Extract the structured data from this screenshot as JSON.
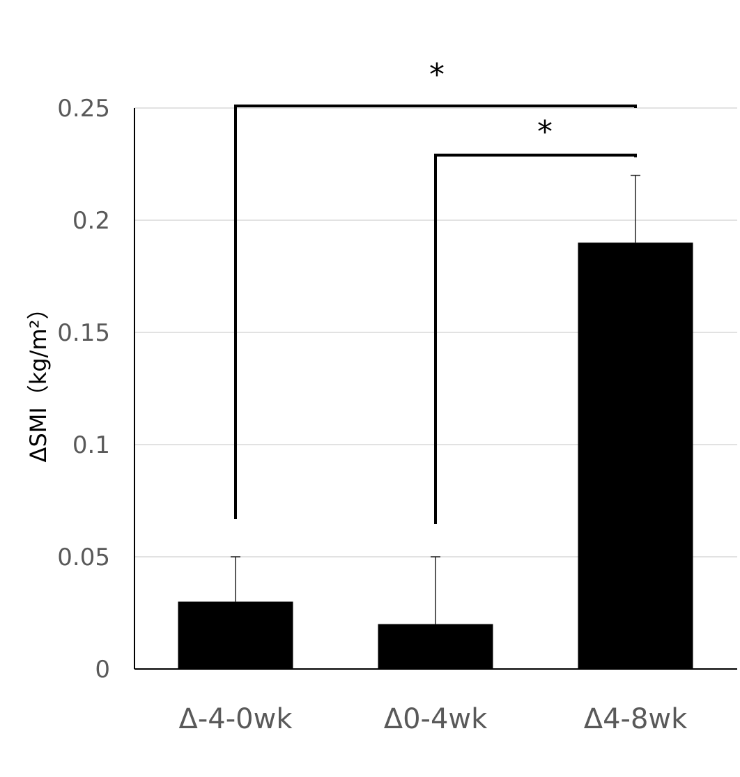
{
  "chart_data": {
    "type": "bar",
    "categories": [
      "Δ-4-0wk",
      "Δ0-4wk",
      "Δ4-8wk"
    ],
    "values": [
      0.03,
      0.02,
      0.19
    ],
    "errors": [
      0.02,
      0.03,
      0.03
    ],
    "ylabel": "ΔSMI（kg/m²）",
    "ylim": [
      0,
      0.25
    ],
    "yticks": [
      {
        "value": 0,
        "label": "0"
      },
      {
        "value": 0.05,
        "label": "0.05"
      },
      {
        "value": 0.1,
        "label": "0.1"
      },
      {
        "value": 0.15,
        "label": "0.15"
      },
      {
        "value": 0.2,
        "label": "0.2"
      },
      {
        "value": 0.25,
        "label": "0.25"
      }
    ],
    "grid": true,
    "bar_color": "#000000",
    "grid_color": "#d9d9d9",
    "significance": [
      {
        "from": 0,
        "to": 2,
        "label": "*"
      },
      {
        "from": 1,
        "to": 2,
        "label": "*"
      }
    ]
  }
}
